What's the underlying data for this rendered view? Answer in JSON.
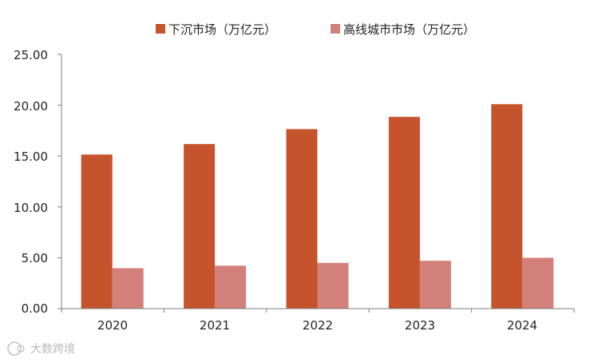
{
  "chart_data": {
    "type": "bar",
    "categories": [
      "2020",
      "2021",
      "2022",
      "2023",
      "2024"
    ],
    "series": [
      {
        "name": "下沉市场（万亿元）",
        "values": [
          15.15,
          16.18,
          17.65,
          18.85,
          20.1
        ],
        "color": "#c5532b"
      },
      {
        "name": "高线城市市场（万亿元）",
        "values": [
          3.98,
          4.22,
          4.5,
          4.7,
          5.0
        ],
        "color": "#d4807a"
      }
    ],
    "title": "",
    "xlabel": "",
    "ylabel": "",
    "ylim": [
      0,
      25
    ],
    "yticks": [
      "0.00",
      "5.00",
      "10.00",
      "15.00",
      "20.00",
      "25.00"
    ],
    "grid": false,
    "legend_position": "top-center"
  },
  "watermark": {
    "icon": "watermark-logo-icon",
    "text": "大数跨境"
  }
}
